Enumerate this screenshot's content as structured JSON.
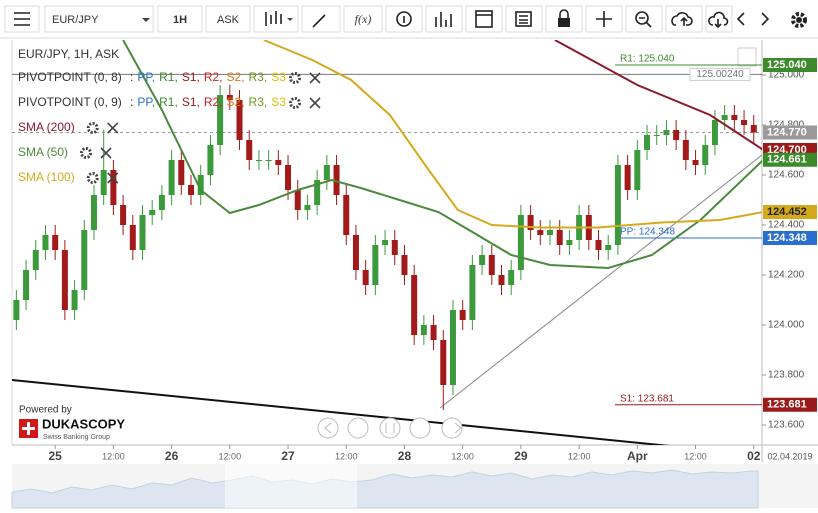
{
  "toolbar": {
    "symbol": "EUR/JPY",
    "period": "1H",
    "side": "ASK",
    "indicators_button": "f(x)"
  },
  "legend": {
    "title": "EUR/JPY, 1H, ASK",
    "pivots": [
      {
        "name": "PIVOTPOINT (0, 8)",
        "prefix": ":",
        "levels": [
          {
            "text": "PP,",
            "color": "#2a6fd0"
          },
          {
            "text": "R1,",
            "color": "#3c8a2c"
          },
          {
            "text": "S1,",
            "color": "#9a1a1a"
          },
          {
            "text": "R2,",
            "color": "#d42020"
          },
          {
            "text": "S2,",
            "color": "#e07a10"
          },
          {
            "text": "R3,",
            "color": "#6a9a20"
          },
          {
            "text": "S3",
            "color": "#d8c400"
          }
        ]
      },
      {
        "name": "PIVOTPOINT (0, 9)",
        "prefix": ":",
        "levels": [
          {
            "text": "PP,",
            "color": "#2a6fd0"
          },
          {
            "text": "R1,",
            "color": "#3c8a2c"
          },
          {
            "text": "S1,",
            "color": "#9a1a1a"
          },
          {
            "text": "R2,",
            "color": "#d42020"
          },
          {
            "text": "S2,",
            "color": "#e07a10"
          },
          {
            "text": "R3,",
            "color": "#6a9a20"
          },
          {
            "text": "S3",
            "color": "#d8c400"
          }
        ]
      }
    ]
  },
  "watermark": {
    "line1": "Powered by",
    "brand": "DUKASCOPY",
    "tagline": "Swiss Banking Group"
  },
  "chart_data": {
    "type": "candlestick",
    "up_color": "#3c9a3c",
    "down_color": "#a31a1a",
    "x": [
      -8,
      -6,
      -4,
      -2,
      0,
      2,
      4,
      6,
      8,
      10,
      12,
      14,
      16,
      18,
      20,
      22,
      24,
      26,
      28,
      30,
      32,
      34,
      36,
      38,
      40,
      42,
      44,
      46,
      48,
      50,
      52,
      54,
      56,
      58,
      60,
      62,
      64,
      66,
      68,
      70,
      72,
      74,
      76,
      78,
      80,
      82,
      84,
      86,
      88,
      90,
      92,
      94,
      96,
      98,
      100,
      102,
      104,
      106,
      108,
      110,
      112,
      114,
      116,
      118,
      120,
      122,
      124,
      126,
      128,
      130,
      132,
      134,
      136,
      138,
      140,
      142,
      144
    ],
    "open": [
      124.02,
      124.1,
      124.22,
      124.3,
      124.36,
      124.3,
      124.06,
      124.14,
      124.38,
      124.52,
      124.62,
      124.48,
      124.4,
      124.3,
      124.44,
      124.46,
      124.52,
      124.66,
      124.56,
      124.52,
      124.6,
      124.72,
      124.92,
      124.9,
      124.74,
      124.66,
      124.66,
      124.66,
      124.64,
      124.54,
      124.46,
      124.48,
      124.58,
      124.64,
      124.52,
      124.36,
      124.22,
      124.16,
      124.32,
      124.34,
      124.28,
      124.2,
      123.96,
      124.0,
      123.94,
      123.76,
      124.06,
      124.02,
      124.24,
      124.28,
      124.2,
      124.16,
      124.22,
      124.44,
      124.38,
      124.36,
      124.38,
      124.32,
      124.34,
      124.44,
      124.34,
      124.3,
      124.32,
      124.64,
      124.54,
      124.7,
      124.76,
      124.76,
      124.78,
      124.74,
      124.66,
      124.64,
      124.72,
      124.82,
      124.84,
      124.82,
      124.8
    ],
    "high": [
      124.14,
      124.26,
      124.34,
      124.4,
      124.4,
      124.34,
      124.18,
      124.42,
      124.56,
      124.78,
      124.66,
      124.52,
      124.44,
      124.48,
      124.5,
      124.56,
      124.7,
      124.7,
      124.6,
      124.64,
      124.76,
      124.96,
      124.96,
      124.94,
      124.78,
      124.7,
      124.7,
      124.7,
      124.68,
      124.58,
      124.52,
      124.62,
      124.68,
      124.68,
      124.56,
      124.4,
      124.26,
      124.36,
      124.38,
      124.38,
      124.32,
      124.24,
      124.04,
      124.04,
      123.98,
      124.1,
      124.1,
      124.28,
      124.32,
      124.32,
      124.24,
      124.26,
      124.48,
      124.48,
      124.42,
      124.42,
      124.42,
      124.38,
      124.48,
      124.48,
      124.38,
      124.36,
      124.68,
      124.68,
      124.74,
      124.8,
      124.8,
      124.82,
      124.82,
      124.78,
      124.7,
      124.76,
      124.86,
      124.88,
      124.88,
      124.86,
      124.84
    ],
    "low": [
      123.98,
      124.06,
      124.18,
      124.26,
      124.26,
      124.02,
      124.02,
      124.1,
      124.34,
      124.48,
      124.44,
      124.36,
      124.26,
      124.26,
      124.4,
      124.42,
      124.48,
      124.52,
      124.48,
      124.48,
      124.56,
      124.68,
      124.86,
      124.7,
      124.62,
      124.62,
      124.62,
      124.6,
      124.5,
      124.42,
      124.42,
      124.44,
      124.54,
      124.48,
      124.32,
      124.18,
      124.12,
      124.12,
      124.28,
      124.24,
      124.16,
      123.92,
      123.92,
      123.9,
      123.66,
      123.72,
      123.98,
      123.98,
      124.2,
      124.16,
      124.12,
      124.12,
      124.18,
      124.34,
      124.32,
      124.32,
      124.28,
      124.28,
      124.3,
      124.3,
      124.26,
      124.26,
      124.28,
      124.5,
      124.5,
      124.66,
      124.72,
      124.72,
      124.7,
      124.62,
      124.6,
      124.6,
      124.68,
      124.78,
      124.78,
      124.76,
      124.73
    ],
    "close": [
      124.1,
      124.22,
      124.3,
      124.36,
      124.3,
      124.06,
      124.14,
      124.38,
      124.52,
      124.62,
      124.48,
      124.4,
      124.3,
      124.44,
      124.46,
      124.52,
      124.66,
      124.56,
      124.52,
      124.6,
      124.72,
      124.92,
      124.9,
      124.74,
      124.66,
      124.66,
      124.66,
      124.64,
      124.54,
      124.46,
      124.48,
      124.58,
      124.64,
      124.52,
      124.36,
      124.22,
      124.16,
      124.32,
      124.34,
      124.28,
      124.2,
      123.96,
      124.0,
      123.94,
      123.76,
      124.06,
      124.02,
      124.24,
      124.28,
      124.2,
      124.16,
      124.22,
      124.44,
      124.38,
      124.36,
      124.38,
      124.32,
      124.34,
      124.44,
      124.34,
      124.3,
      124.32,
      124.64,
      124.54,
      124.7,
      124.76,
      124.76,
      124.78,
      124.74,
      124.66,
      124.64,
      124.72,
      124.82,
      124.84,
      124.82,
      124.8,
      124.77
    ],
    "series": [
      {
        "name": "SMA (200)",
        "color": "#8b1a2b",
        "x": [
          103,
          120,
          135,
          146
        ],
        "values": [
          125.14,
          124.96,
          124.84,
          124.7
        ]
      },
      {
        "name": "SMA (50)",
        "color": "#4a8a3c",
        "x": [
          14,
          22,
          30,
          36,
          42,
          50,
          57,
          63,
          71,
          79,
          86,
          94,
          102,
          114,
          123,
          133,
          146
        ],
        "values": [
          125.14,
          124.86,
          124.54,
          124.448,
          124.48,
          124.54,
          124.58,
          124.548,
          124.5,
          124.452,
          124.372,
          124.28,
          124.24,
          124.228,
          124.28,
          124.42,
          124.661
        ]
      },
      {
        "name": "SMA (100)",
        "color": "#d4aa1c",
        "x": [
          43,
          53,
          61,
          69,
          77,
          83,
          90,
          100,
          112,
          125,
          137,
          146
        ],
        "values": [
          125.14,
          125.06,
          124.98,
          124.84,
          124.62,
          124.46,
          124.4,
          124.39,
          124.39,
          124.41,
          124.42,
          124.452
        ]
      }
    ],
    "levels": [
      {
        "label": "R1: 125.040",
        "value": 125.04,
        "color": "#3c8a2c"
      },
      {
        "label": "PP: 124.348",
        "value": 124.348,
        "color": "#2a6fd0"
      },
      {
        "label": "S1: 123.681",
        "value": 123.681,
        "color": "#9a1a1a"
      }
    ],
    "pivot_line": {
      "label": "125.00240",
      "value": 125.0024,
      "color": "#777777"
    },
    "current_price": {
      "label": "124.770",
      "value": 124.77,
      "color": "#9a9a9a"
    },
    "price_tags": [
      {
        "label": "125.040",
        "value": 125.04,
        "color": "#3c8a2c",
        "text_color": "#ffffff"
      },
      {
        "label": "124.700",
        "value": 124.7,
        "color": "#9a1a1a",
        "text_color": "#ffffff"
      },
      {
        "label": "124.661",
        "value": 124.661,
        "color": "#3c8a2c",
        "text_color": "#ffffff"
      },
      {
        "label": "124.452",
        "value": 124.452,
        "color": "#d4aa1c",
        "text_color": "#222222"
      },
      {
        "label": "124.348",
        "value": 124.348,
        "color": "#2a6fd0",
        "text_color": "#ffffff"
      },
      {
        "label": "123.681",
        "value": 123.681,
        "color": "#9a1a1a",
        "text_color": "#ffffff"
      }
    ],
    "xlim": [
      -8.9,
      145.7
    ],
    "xticks": [
      {
        "value": 0,
        "label": "25"
      },
      {
        "value": 12,
        "label": "12:00"
      },
      {
        "value": 24,
        "label": "26"
      },
      {
        "value": 36,
        "label": "12:00"
      },
      {
        "value": 48,
        "label": "27"
      },
      {
        "value": 60,
        "label": "12:00"
      },
      {
        "value": 72,
        "label": "28"
      },
      {
        "value": 84,
        "label": "12:00"
      },
      {
        "value": 96,
        "label": "29"
      },
      {
        "value": 108,
        "label": "12:00"
      },
      {
        "value": 120,
        "label": "Apr"
      },
      {
        "value": 132,
        "label": "12:00"
      },
      {
        "value": 144,
        "label": "02"
      }
    ],
    "ylim": [
      123.52,
      125.14
    ],
    "yticks": [
      {
        "value": 125,
        "label": "125.000"
      },
      {
        "value": 124.8,
        "label": "124.800"
      },
      {
        "value": 124.6,
        "label": "124.600"
      },
      {
        "value": 124.4,
        "label": "124.400"
      },
      {
        "value": 124.2,
        "label": "124.200"
      },
      {
        "value": 124,
        "label": "124.000"
      },
      {
        "value": 123.8,
        "label": "123.800"
      },
      {
        "value": 123.6,
        "label": "123.600"
      }
    ],
    "grid": false,
    "date_label": "02.04.2019"
  }
}
